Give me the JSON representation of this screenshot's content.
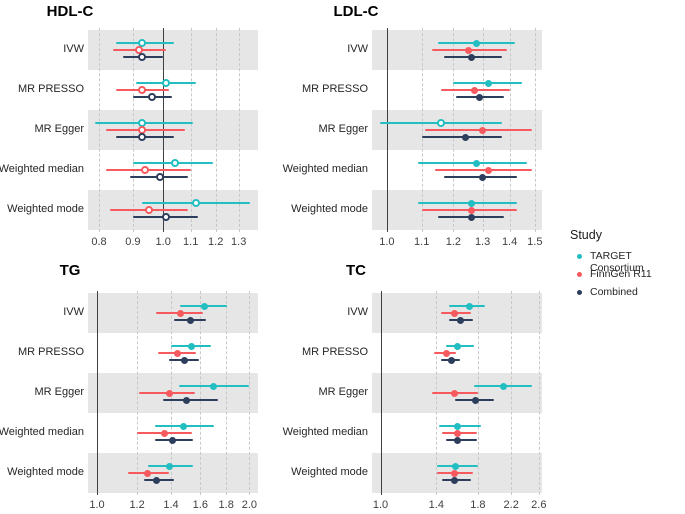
{
  "legend": {
    "title": "Study",
    "items": [
      {
        "label": "TARGET Consortium",
        "color": "#23BEC1"
      },
      {
        "label": "FinnGen R11",
        "color": "#F65A5F"
      },
      {
        "label": "Combined",
        "color": "#2D3E5C"
      }
    ]
  },
  "methods": [
    "IVW",
    "MR PRESSO",
    "MR Egger",
    "Weighted median",
    "Weighted mode"
  ],
  "colors": {
    "target": "#23BEC1",
    "finngen": "#F65A5F",
    "combined": "#2D3E5C",
    "stripe": "#E6E6E6",
    "gridline": "#C8C8C8",
    "refline": "#3F3F3F"
  },
  "chart_data": [
    {
      "type": "scatter",
      "subtype": "forest-plot",
      "title": "HDL-C",
      "xscale": "log",
      "xticks": [
        0.8,
        0.9,
        1.0,
        1.1,
        1.2,
        1.3
      ],
      "xlim": [
        0.77,
        1.39
      ],
      "refline": 1.0,
      "grid": "dashed-vertical",
      "categories": [
        "IVW",
        "MR PRESSO",
        "MR Egger",
        "Weighted median",
        "Weighted mode"
      ],
      "series": [
        {
          "name": "TARGET Consortium",
          "color": "#23BEC1",
          "points": [
            {
              "or": 0.93,
              "lo": 0.85,
              "hi": 1.04,
              "filled": false
            },
            {
              "or": 1.01,
              "lo": 0.91,
              "hi": 1.12,
              "filled": false
            },
            {
              "or": 0.93,
              "lo": 0.79,
              "hi": 1.11,
              "filled": false
            },
            {
              "or": 1.04,
              "lo": 0.9,
              "hi": 1.19,
              "filled": false
            },
            {
              "or": 1.12,
              "lo": 0.93,
              "hi": 1.35,
              "filled": false
            }
          ]
        },
        {
          "name": "FinnGen R11",
          "color": "#F65A5F",
          "points": [
            {
              "or": 0.92,
              "lo": 0.84,
              "hi": 1.01,
              "filled": false
            },
            {
              "or": 0.93,
              "lo": 0.85,
              "hi": 1.02,
              "filled": false
            },
            {
              "or": 0.93,
              "lo": 0.82,
              "hi": 1.08,
              "filled": false
            },
            {
              "or": 0.94,
              "lo": 0.82,
              "hi": 1.1,
              "filled": false
            },
            {
              "or": 0.95,
              "lo": 0.83,
              "hi": 1.09,
              "filled": false
            }
          ]
        },
        {
          "name": "Combined",
          "color": "#2D3E5C",
          "points": [
            {
              "or": 0.93,
              "lo": 0.87,
              "hi": 1.0,
              "filled": false
            },
            {
              "or": 0.96,
              "lo": 0.9,
              "hi": 1.03,
              "filled": false
            },
            {
              "or": 0.93,
              "lo": 0.85,
              "hi": 1.04,
              "filled": false
            },
            {
              "or": 0.99,
              "lo": 0.89,
              "hi": 1.09,
              "filled": false
            },
            {
              "or": 1.01,
              "lo": 0.9,
              "hi": 1.13,
              "filled": false
            }
          ]
        }
      ]
    },
    {
      "type": "scatter",
      "subtype": "forest-plot",
      "title": "LDL-C",
      "xscale": "log",
      "xticks": [
        1.0,
        1.1,
        1.2,
        1.3,
        1.4,
        1.5
      ],
      "xlim": [
        0.96,
        1.53
      ],
      "refline": 1.0,
      "grid": "dashed-vertical",
      "categories": [
        "IVW",
        "MR PRESSO",
        "MR Egger",
        "Weighted median",
        "Weighted mode"
      ],
      "series": [
        {
          "name": "TARGET Consortium",
          "color": "#23BEC1",
          "points": [
            {
              "or": 1.28,
              "lo": 1.15,
              "hi": 1.42,
              "filled": true
            },
            {
              "or": 1.32,
              "lo": 1.2,
              "hi": 1.45,
              "filled": true
            },
            {
              "or": 1.16,
              "lo": 0.98,
              "hi": 1.37,
              "filled": false
            },
            {
              "or": 1.28,
              "lo": 1.09,
              "hi": 1.47,
              "filled": true
            },
            {
              "or": 1.26,
              "lo": 1.09,
              "hi": 1.43,
              "filled": true
            }
          ]
        },
        {
          "name": "FinnGen R11",
          "color": "#F65A5F",
          "points": [
            {
              "or": 1.25,
              "lo": 1.13,
              "hi": 1.39,
              "filled": true
            },
            {
              "or": 1.27,
              "lo": 1.16,
              "hi": 1.4,
              "filled": true
            },
            {
              "or": 1.3,
              "lo": 1.11,
              "hi": 1.49,
              "filled": true
            },
            {
              "or": 1.32,
              "lo": 1.14,
              "hi": 1.49,
              "filled": true
            },
            {
              "or": 1.26,
              "lo": 1.1,
              "hi": 1.43,
              "filled": true
            }
          ]
        },
        {
          "name": "Combined",
          "color": "#2D3E5C",
          "points": [
            {
              "or": 1.26,
              "lo": 1.17,
              "hi": 1.37,
              "filled": true
            },
            {
              "or": 1.29,
              "lo": 1.21,
              "hi": 1.38,
              "filled": true
            },
            {
              "or": 1.24,
              "lo": 1.1,
              "hi": 1.37,
              "filled": true
            },
            {
              "or": 1.3,
              "lo": 1.17,
              "hi": 1.43,
              "filled": true
            },
            {
              "or": 1.26,
              "lo": 1.15,
              "hi": 1.38,
              "filled": true
            }
          ]
        }
      ]
    },
    {
      "type": "scatter",
      "subtype": "forest-plot",
      "title": "TG",
      "xscale": "log",
      "xticks": [
        1.0,
        1.2,
        1.4,
        1.6,
        1.8,
        2.0
      ],
      "xlim": [
        0.96,
        2.08
      ],
      "refline": 1.0,
      "grid": "dashed-vertical",
      "categories": [
        "IVW",
        "MR PRESSO",
        "MR Egger",
        "Weighted median",
        "Weighted mode"
      ],
      "series": [
        {
          "name": "TARGET Consortium",
          "color": "#23BEC1",
          "points": [
            {
              "or": 1.63,
              "lo": 1.46,
              "hi": 1.81,
              "filled": true
            },
            {
              "or": 1.54,
              "lo": 1.4,
              "hi": 1.68,
              "filled": true
            },
            {
              "or": 1.7,
              "lo": 1.45,
              "hi": 2.0,
              "filled": true
            },
            {
              "or": 1.48,
              "lo": 1.3,
              "hi": 1.7,
              "filled": true
            },
            {
              "or": 1.39,
              "lo": 1.26,
              "hi": 1.55,
              "filled": true
            }
          ]
        },
        {
          "name": "FinnGen R11",
          "color": "#F65A5F",
          "points": [
            {
              "or": 1.46,
              "lo": 1.31,
              "hi": 1.62,
              "filled": true
            },
            {
              "or": 1.44,
              "lo": 1.32,
              "hi": 1.57,
              "filled": true
            },
            {
              "or": 1.39,
              "lo": 1.21,
              "hi": 1.56,
              "filled": true
            },
            {
              "or": 1.36,
              "lo": 1.2,
              "hi": 1.54,
              "filled": true
            },
            {
              "or": 1.26,
              "lo": 1.15,
              "hi": 1.39,
              "filled": true
            }
          ]
        },
        {
          "name": "Combined",
          "color": "#2D3E5C",
          "points": [
            {
              "or": 1.53,
              "lo": 1.42,
              "hi": 1.64,
              "filled": true
            },
            {
              "or": 1.49,
              "lo": 1.39,
              "hi": 1.59,
              "filled": true
            },
            {
              "or": 1.5,
              "lo": 1.35,
              "hi": 1.73,
              "filled": true
            },
            {
              "or": 1.41,
              "lo": 1.3,
              "hi": 1.55,
              "filled": true
            },
            {
              "or": 1.31,
              "lo": 1.24,
              "hi": 1.42,
              "filled": true
            }
          ]
        }
      ]
    },
    {
      "type": "scatter",
      "subtype": "forest-plot",
      "title": "TC",
      "xscale": "log",
      "xticks": [
        1.0,
        1.4,
        1.8,
        2.2,
        2.6
      ],
      "xlim": [
        0.95,
        2.65
      ],
      "refline": 1.0,
      "grid": "dashed-vertical",
      "categories": [
        "IVW",
        "MR PRESSO",
        "MR Egger",
        "Weighted median",
        "Weighted mode"
      ],
      "series": [
        {
          "name": "TARGET Consortium",
          "color": "#23BEC1",
          "points": [
            {
              "or": 1.71,
              "lo": 1.51,
              "hi": 1.88,
              "filled": true
            },
            {
              "or": 1.59,
              "lo": 1.48,
              "hi": 1.76,
              "filled": true
            },
            {
              "or": 2.1,
              "lo": 1.76,
              "hi": 2.49,
              "filled": true
            },
            {
              "or": 1.59,
              "lo": 1.42,
              "hi": 1.83,
              "filled": true
            },
            {
              "or": 1.57,
              "lo": 1.41,
              "hi": 1.8,
              "filled": true
            }
          ]
        },
        {
          "name": "FinnGen R11",
          "color": "#F65A5F",
          "points": [
            {
              "or": 1.56,
              "lo": 1.44,
              "hi": 1.73,
              "filled": true
            },
            {
              "or": 1.49,
              "lo": 1.38,
              "hi": 1.58,
              "filled": true
            },
            {
              "or": 1.56,
              "lo": 1.36,
              "hi": 1.8,
              "filled": true
            },
            {
              "or": 1.59,
              "lo": 1.45,
              "hi": 1.79,
              "filled": true
            },
            {
              "or": 1.56,
              "lo": 1.41,
              "hi": 1.75,
              "filled": true
            }
          ]
        },
        {
          "name": "Combined",
          "color": "#2D3E5C",
          "points": [
            {
              "or": 1.62,
              "lo": 1.51,
              "hi": 1.75,
              "filled": true
            },
            {
              "or": 1.53,
              "lo": 1.44,
              "hi": 1.62,
              "filled": true
            },
            {
              "or": 1.77,
              "lo": 1.57,
              "hi": 1.98,
              "filled": true
            },
            {
              "or": 1.59,
              "lo": 1.48,
              "hi": 1.79,
              "filled": true
            },
            {
              "or": 1.56,
              "lo": 1.45,
              "hi": 1.73,
              "filled": true
            }
          ]
        }
      ]
    }
  ]
}
